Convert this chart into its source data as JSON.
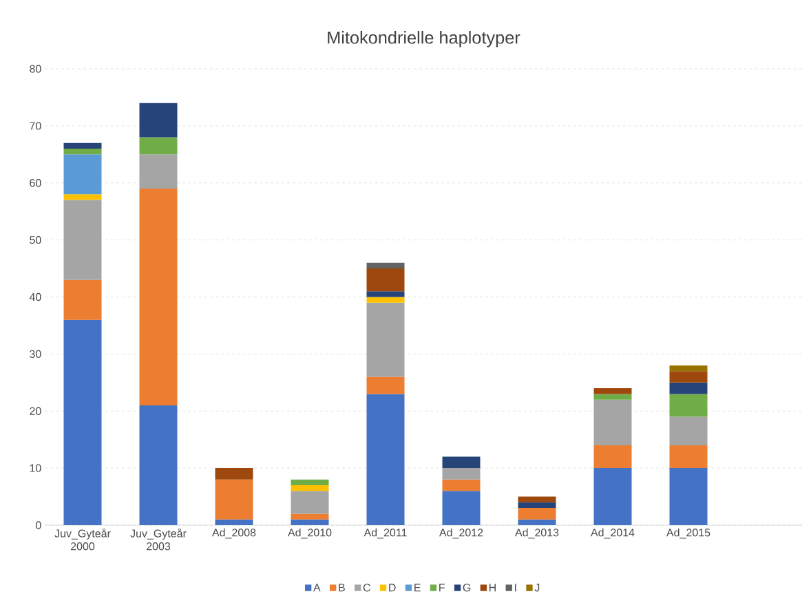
{
  "chart_data": {
    "type": "bar",
    "stacked": true,
    "title": "Mitokondrielle haplotyper",
    "categories": [
      "Juv_Gyteår 2000",
      "Juv_Gyteår 2003",
      "Ad_2008",
      "Ad_2010",
      "Ad_2011",
      "Ad_2012",
      "Ad_2013",
      "Ad_2014",
      "Ad_2015",
      null
    ],
    "series": [
      {
        "name": "A",
        "color": "#4472c4",
        "values": [
          36,
          21,
          1,
          1,
          23,
          6,
          1,
          10,
          10,
          null
        ]
      },
      {
        "name": "B",
        "color": "#ed7d31",
        "values": [
          7,
          38,
          7,
          1,
          3,
          2,
          2,
          4,
          4,
          null
        ]
      },
      {
        "name": "C",
        "color": "#a5a5a5",
        "values": [
          14,
          6,
          null,
          4,
          13,
          2,
          null,
          8,
          5,
          null
        ]
      },
      {
        "name": "D",
        "color": "#ffc000",
        "values": [
          1,
          null,
          null,
          1,
          1,
          null,
          null,
          null,
          null,
          null
        ]
      },
      {
        "name": "E",
        "color": "#5b9bd5",
        "values": [
          7,
          null,
          null,
          null,
          null,
          null,
          null,
          null,
          null,
          null
        ]
      },
      {
        "name": "F",
        "color": "#70ad47",
        "values": [
          1,
          3,
          null,
          1,
          null,
          null,
          null,
          1,
          4,
          null
        ]
      },
      {
        "name": "G",
        "color": "#264478",
        "values": [
          1,
          6,
          null,
          null,
          1,
          2,
          1,
          null,
          2,
          null
        ]
      },
      {
        "name": "H",
        "color": "#9e480e",
        "values": [
          null,
          null,
          2,
          null,
          4,
          null,
          1,
          1,
          2,
          null
        ]
      },
      {
        "name": "I",
        "color": "#636363",
        "values": [
          null,
          null,
          null,
          null,
          1,
          null,
          null,
          null,
          null,
          null
        ]
      },
      {
        "name": "J",
        "color": "#997300",
        "values": [
          null,
          null,
          null,
          null,
          null,
          null,
          null,
          null,
          1,
          null
        ]
      }
    ],
    "ylim": [
      0,
      80
    ],
    "yticks": [
      0,
      10,
      20,
      30,
      40,
      50,
      60,
      70,
      80
    ],
    "grid": "y",
    "legend": "bottom"
  }
}
